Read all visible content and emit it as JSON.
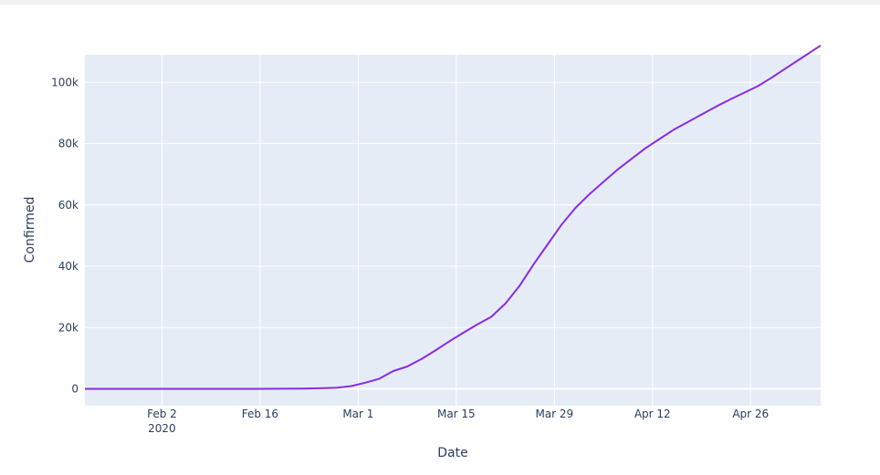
{
  "chart_data": {
    "type": "line",
    "title": "",
    "xlabel": "Date",
    "ylabel": "Confirmed",
    "x_type": "date",
    "xlim": [
      "2020-01-22",
      "2020-05-06"
    ],
    "ylim": [
      -5500,
      109000
    ],
    "grid": true,
    "legend": "none",
    "colors": {
      "plot_bg": "#e5ecf6",
      "grid": "#ffffff",
      "line": "#8a2be2",
      "tick_text": "#2a3f5f"
    },
    "x_ticks": [
      {
        "date": "2020-02-02",
        "label": "Feb 2",
        "sublabel": "2020"
      },
      {
        "date": "2020-02-16",
        "label": "Feb 16",
        "sublabel": ""
      },
      {
        "date": "2020-03-01",
        "label": "Mar 1",
        "sublabel": ""
      },
      {
        "date": "2020-03-15",
        "label": "Mar 15",
        "sublabel": ""
      },
      {
        "date": "2020-03-29",
        "label": "Mar 29",
        "sublabel": ""
      },
      {
        "date": "2020-04-12",
        "label": "Apr 12",
        "sublabel": ""
      },
      {
        "date": "2020-04-26",
        "label": "Apr 26",
        "sublabel": ""
      }
    ],
    "y_ticks": [
      {
        "value": 0,
        "label": "0"
      },
      {
        "value": 20000,
        "label": "20k"
      },
      {
        "value": 40000,
        "label": "40k"
      },
      {
        "value": 60000,
        "label": "60k"
      },
      {
        "value": 80000,
        "label": "80k"
      },
      {
        "value": 100000,
        "label": "100k"
      }
    ],
    "series": [
      {
        "x": [
          "2020-01-22",
          "2020-02-02",
          "2020-02-16",
          "2020-02-22",
          "2020-02-25",
          "2020-02-27",
          "2020-02-29",
          "2020-03-02",
          "2020-03-04",
          "2020-03-06",
          "2020-03-08",
          "2020-03-10",
          "2020-03-12",
          "2020-03-14",
          "2020-03-16",
          "2020-03-18",
          "2020-03-20",
          "2020-03-22",
          "2020-03-24",
          "2020-03-26",
          "2020-03-28",
          "2020-03-30",
          "2020-04-01",
          "2020-04-03",
          "2020-04-05",
          "2020-04-07",
          "2020-04-09",
          "2020-04-11",
          "2020-04-13",
          "2020-04-15",
          "2020-04-17",
          "2020-04-19",
          "2020-04-21",
          "2020-04-23",
          "2020-04-25",
          "2020-04-27",
          "2020-04-29",
          "2020-05-01",
          "2020-05-03",
          "2020-05-06"
        ],
        "y": [
          0,
          0,
          0,
          100,
          200,
          400,
          900,
          2000,
          3300,
          5800,
          7300,
          9700,
          12500,
          15500,
          18300,
          21000,
          23500,
          27800,
          33500,
          40500,
          47000,
          53500,
          59000,
          63500,
          67500,
          71500,
          75000,
          78500,
          81500,
          84500,
          87000,
          89500,
          92000,
          94300,
          96500,
          98700,
          101500,
          104500,
          107500,
          112000
        ]
      }
    ]
  }
}
